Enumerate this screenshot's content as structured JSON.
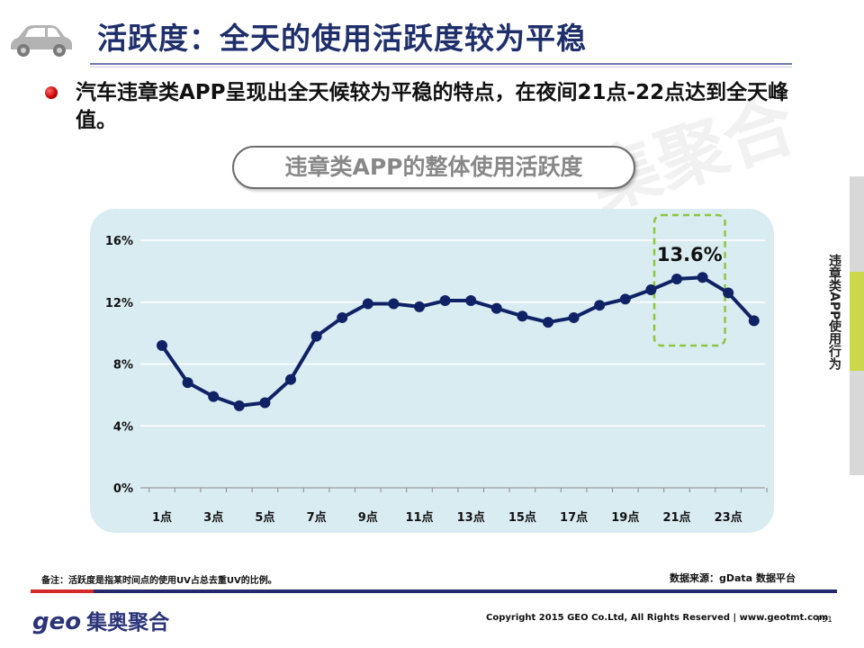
{
  "header": {
    "title": "活跃度：全天的使用活跃度较为平稳",
    "icon": "car-icon"
  },
  "bullet": {
    "text": "汽车违章类APP呈现出全天候较为平稳的特点，在夜间21点-22点达到全天峰值。"
  },
  "watermark": "集聚合",
  "chart_title": "违章类APP的整体使用活跃度",
  "chart_data": {
    "type": "line",
    "categories": [
      "1点",
      "2点",
      "3点",
      "4点",
      "5点",
      "6点",
      "7点",
      "8点",
      "9点",
      "10点",
      "11点",
      "12点",
      "13点",
      "14点",
      "15点",
      "16点",
      "17点",
      "18点",
      "19点",
      "20点",
      "21点",
      "22点",
      "23点",
      "24点"
    ],
    "x_tick_labels": [
      "1点",
      "3点",
      "5点",
      "7点",
      "9点",
      "11点",
      "13点",
      "15点",
      "17点",
      "19点",
      "21点",
      "23点"
    ],
    "series": [
      {
        "values": [
          9.2,
          6.8,
          5.9,
          5.3,
          5.5,
          7.0,
          9.8,
          11.0,
          11.9,
          11.9,
          11.7,
          12.1,
          12.1,
          11.6,
          11.1,
          10.7,
          11.0,
          11.8,
          12.2,
          12.8,
          13.5,
          13.6,
          12.6,
          10.8
        ]
      }
    ],
    "ylim": [
      0,
      16
    ],
    "y_ticks": [
      "0%",
      "4%",
      "8%",
      "12%",
      "16%"
    ],
    "grid": true,
    "highlight": {
      "label": "13.6%",
      "from_index": 20,
      "to_index": 21
    },
    "colors": {
      "line": "#0f2266",
      "panel": "#d9ecf1",
      "highlight": "#8cc63f"
    }
  },
  "side_tab": {
    "label": "违章类APP使用行为"
  },
  "footer": {
    "note": "备注：活跃度是指某时间点的使用UV占总去重UV的比例。",
    "source": "数据来源：gData 数据平台",
    "logo_geo": "geo",
    "logo_cn": "集奥聚合",
    "copyright": "Copyright 2015 GEO Co.Ltd, All Rights Reserved  |  www.geotmt.com",
    "page": "P51"
  }
}
